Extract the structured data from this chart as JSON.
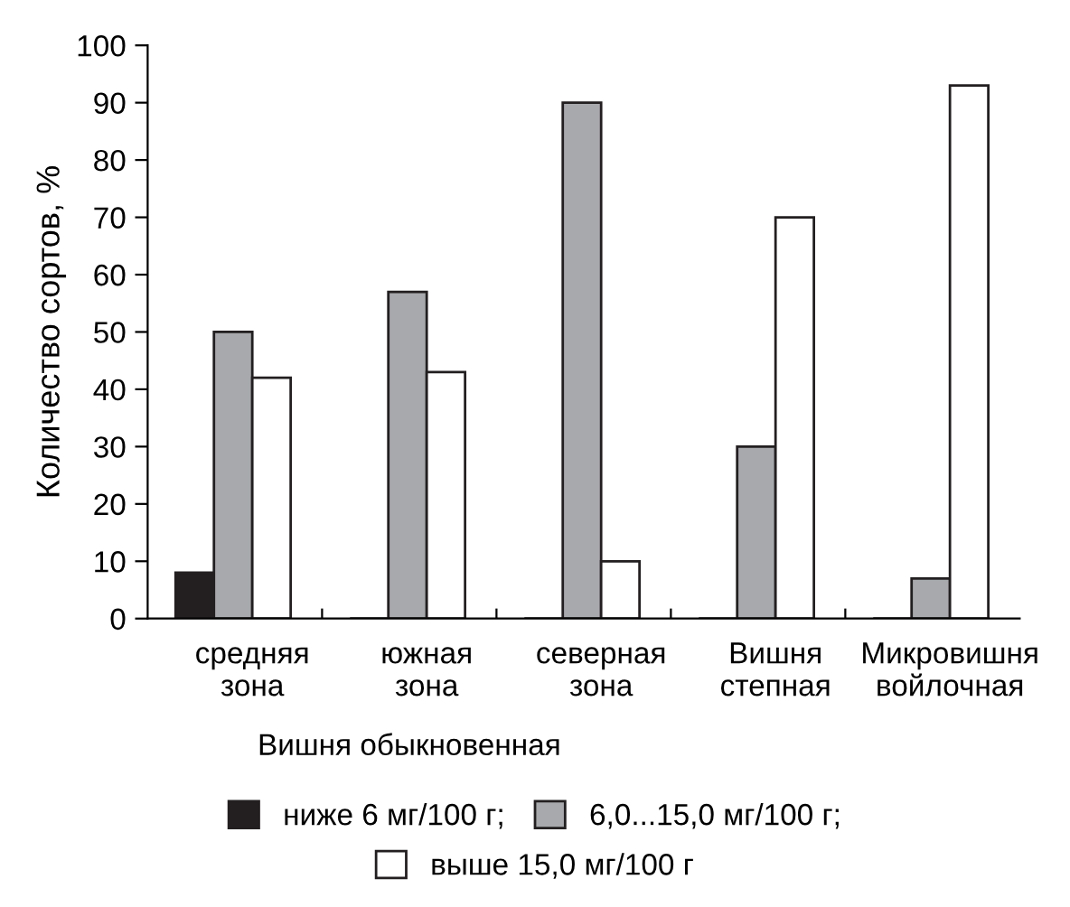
{
  "chart_data": {
    "type": "bar",
    "ylabel": "Количество сортов, %",
    "categories": [
      "средняя\nзона",
      "южная\nзона",
      "северная\nзона",
      "Вишня\nстепная",
      "Микровишня\nвойлочная"
    ],
    "series": [
      {
        "name": "ниже 6 мг/100 г;",
        "color": "#231f20",
        "values": [
          8,
          0,
          0,
          0,
          0
        ]
      },
      {
        "name": "6,0...15,0 мг/100 г;",
        "color": "#a7a9ac",
        "values": [
          50,
          57,
          90,
          30,
          7
        ]
      },
      {
        "name": "выше 15,0 мг/100 г",
        "color": "#ffffff",
        "values": [
          42,
          43,
          10,
          70,
          93
        ]
      }
    ],
    "annotations": [
      "Вишня обыкновенная"
    ],
    "ylim": [
      0,
      100
    ],
    "yticks": [
      0,
      10,
      20,
      30,
      40,
      50,
      60,
      70,
      80,
      90,
      100
    ],
    "grid": false,
    "legend": "bottom"
  }
}
